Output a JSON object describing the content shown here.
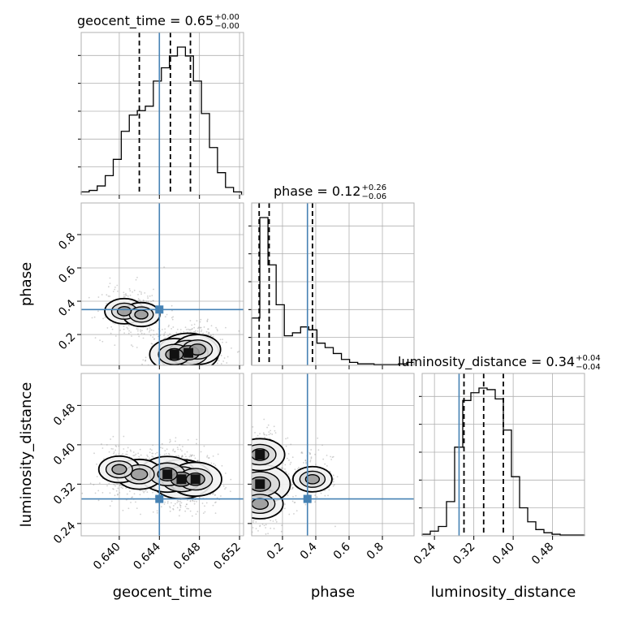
{
  "chart_data": {
    "type": "corner",
    "parameters": [
      "geocent_time",
      "phase",
      "luminosity_distance"
    ],
    "truths": {
      "geocent_time": 0.644,
      "phase": 0.35,
      "luminosity_distance": 0.29
    },
    "colors": {
      "truth": "#4682b4",
      "hist": "#000000",
      "grid": "#b0b0b0",
      "scatter": "#9a9a9a"
    },
    "grid": true,
    "titles": [
      {
        "param": "geocent_time",
        "text": "geocent_time = 0.65",
        "sup": "+0.00",
        "sub": "−0.00"
      },
      {
        "param": "phase",
        "text": "phase = 0.12",
        "sup": "+0.26",
        "sub": "−0.06"
      },
      {
        "param": "luminosity_distance",
        "text": "luminosity_distance = 0.34",
        "sup": "+0.04",
        "sub": "−0.04"
      }
    ],
    "axis_labels": {
      "x": [
        "geocent_time",
        "phase",
        "luminosity_distance"
      ],
      "y": [
        "phase",
        "luminosity_distance"
      ]
    },
    "ranges": {
      "geocent_time": [
        0.6362,
        0.6524
      ],
      "phase": [
        0.015,
        0.99
      ],
      "luminosity_distance": [
        0.215,
        0.545
      ]
    },
    "ticks": {
      "geocent_time": {
        "values": [
          0.64,
          0.644,
          0.648,
          0.652
        ],
        "labels": [
          "0.640",
          "0.644",
          "0.648",
          "0.652"
        ]
      },
      "phase": {
        "values": [
          0.2,
          0.4,
          0.6,
          0.8
        ],
        "labels": [
          "0.2",
          "0.4",
          "0.6",
          "0.8"
        ]
      },
      "luminosity_distance": {
        "values": [
          0.24,
          0.32,
          0.4,
          0.48
        ],
        "labels": [
          "0.24",
          "0.32",
          "0.40",
          "0.48"
        ]
      }
    },
    "histograms": {
      "geocent_time": {
        "edges": [
          0.6362,
          0.637,
          0.6378,
          0.6386,
          0.6394,
          0.6402,
          0.641,
          0.6418,
          0.6426,
          0.6434,
          0.6442,
          0.645,
          0.6458,
          0.6466,
          0.6474,
          0.6482,
          0.649,
          0.6498,
          0.6506,
          0.6514,
          0.6522
        ],
        "counts": [
          0.02,
          0.03,
          0.06,
          0.13,
          0.24,
          0.43,
          0.54,
          0.57,
          0.6,
          0.77,
          0.86,
          0.94,
          1.0,
          0.94,
          0.77,
          0.55,
          0.32,
          0.15,
          0.05,
          0.02
        ],
        "quantiles": [
          0.642,
          0.6451,
          0.6471
        ]
      },
      "phase": {
        "edges": [
          0.015,
          0.064,
          0.113,
          0.162,
          0.211,
          0.26,
          0.309,
          0.358,
          0.407,
          0.456,
          0.505,
          0.554,
          0.603,
          0.652,
          0.701,
          0.75,
          0.799,
          0.848,
          0.897,
          0.946,
          0.99
        ],
        "counts": [
          0.32,
          1.0,
          0.68,
          0.41,
          0.2,
          0.22,
          0.26,
          0.24,
          0.15,
          0.12,
          0.08,
          0.04,
          0.02,
          0.01,
          0.01,
          0.005,
          0.005,
          0.005,
          0.01,
          0.02
        ],
        "quantiles": [
          0.06,
          0.12,
          0.38
        ]
      },
      "luminosity_distance": {
        "edges": [
          0.215,
          0.2315,
          0.248,
          0.2645,
          0.281,
          0.2975,
          0.314,
          0.3305,
          0.347,
          0.3635,
          0.38,
          0.3965,
          0.413,
          0.4295,
          0.446,
          0.4625,
          0.479,
          0.4955,
          0.512,
          0.5285,
          0.545
        ],
        "counts": [
          0.01,
          0.03,
          0.06,
          0.22,
          0.57,
          0.87,
          0.92,
          0.95,
          0.94,
          0.88,
          0.68,
          0.38,
          0.18,
          0.09,
          0.04,
          0.02,
          0.01,
          0.005,
          0.005,
          0.005
        ],
        "quantiles": [
          0.3,
          0.34,
          0.38
        ]
      }
    },
    "density_peaks": {
      "phase_vs_geocent_time": [
        {
          "x": 0.6469,
          "y": 0.09,
          "level": 1.0
        },
        {
          "x": 0.6455,
          "y": 0.08,
          "level": 0.6
        },
        {
          "x": 0.6478,
          "y": 0.11,
          "level": 0.5
        },
        {
          "x": 0.6405,
          "y": 0.34,
          "level": 0.3
        },
        {
          "x": 0.6422,
          "y": 0.32,
          "level": 0.25
        }
      ],
      "luminosity_distance_vs_geocent_time": [
        {
          "x": 0.6462,
          "y": 0.33,
          "level": 1.0
        },
        {
          "x": 0.6448,
          "y": 0.34,
          "level": 0.8
        },
        {
          "x": 0.6476,
          "y": 0.33,
          "level": 0.7
        },
        {
          "x": 0.642,
          "y": 0.34,
          "level": 0.5
        },
        {
          "x": 0.64,
          "y": 0.35,
          "level": 0.35
        }
      ],
      "luminosity_distance_vs_phase": [
        {
          "x": 0.065,
          "y": 0.32,
          "level": 1.0
        },
        {
          "x": 0.065,
          "y": 0.38,
          "level": 0.6
        },
        {
          "x": 0.065,
          "y": 0.28,
          "level": 0.5
        },
        {
          "x": 0.38,
          "y": 0.33,
          "level": 0.3
        }
      ]
    }
  }
}
